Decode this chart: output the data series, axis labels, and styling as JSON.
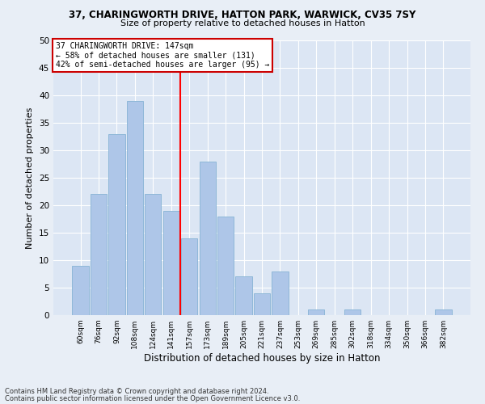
{
  "title1": "37, CHARINGWORTH DRIVE, HATTON PARK, WARWICK, CV35 7SY",
  "title2": "Size of property relative to detached houses in Hatton",
  "xlabel": "Distribution of detached houses by size in Hatton",
  "ylabel": "Number of detached properties",
  "categories": [
    "60sqm",
    "76sqm",
    "92sqm",
    "108sqm",
    "124sqm",
    "141sqm",
    "157sqm",
    "173sqm",
    "189sqm",
    "205sqm",
    "221sqm",
    "237sqm",
    "253sqm",
    "269sqm",
    "285sqm",
    "302sqm",
    "318sqm",
    "334sqm",
    "350sqm",
    "366sqm",
    "382sqm"
  ],
  "values": [
    9,
    22,
    33,
    39,
    22,
    19,
    14,
    28,
    18,
    7,
    4,
    8,
    0,
    1,
    0,
    1,
    0,
    0,
    0,
    0,
    1
  ],
  "bar_color": "#aec6e8",
  "bar_edge_color": "#8fb8d8",
  "reference_line_x": 5.5,
  "annotation_line0": "37 CHARINGWORTH DRIVE: 147sqm",
  "annotation_line1": "← 58% of detached houses are smaller (131)",
  "annotation_line2": "42% of semi-detached houses are larger (95) →",
  "annotation_box_color": "#cc0000",
  "ylim": [
    0,
    50
  ],
  "yticks": [
    0,
    5,
    10,
    15,
    20,
    25,
    30,
    35,
    40,
    45,
    50
  ],
  "footnote1": "Contains HM Land Registry data © Crown copyright and database right 2024.",
  "footnote2": "Contains public sector information licensed under the Open Government Licence v3.0.",
  "bg_color": "#e8eef6",
  "plot_bg_color": "#dce6f4"
}
